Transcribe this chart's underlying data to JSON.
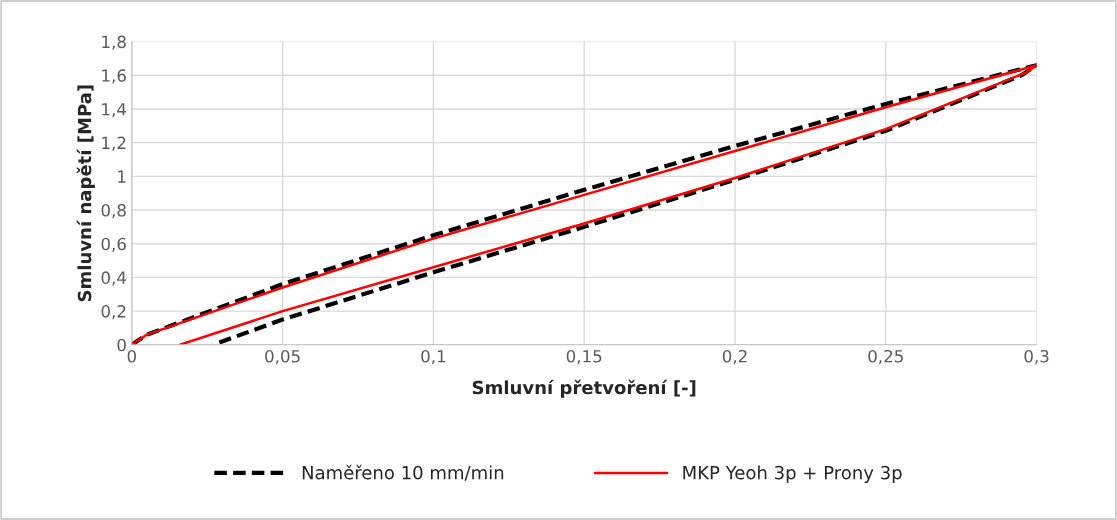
{
  "chart_data": {
    "type": "line",
    "xlabel": "Smluvní přetvoření [-]",
    "ylabel": "Smluvní napětí [MPa]",
    "xlim": [
      0,
      0.3
    ],
    "ylim": [
      0,
      1.8
    ],
    "xticks": [
      {
        "value": 0,
        "label": "0"
      },
      {
        "value": 0.05,
        "label": "0,05"
      },
      {
        "value": 0.1,
        "label": "0,1"
      },
      {
        "value": 0.15,
        "label": "0,15"
      },
      {
        "value": 0.2,
        "label": "0,2"
      },
      {
        "value": 0.25,
        "label": "0,25"
      },
      {
        "value": 0.3,
        "label": "0,3"
      }
    ],
    "yticks": [
      {
        "value": 0,
        "label": "0"
      },
      {
        "value": 0.2,
        "label": "0,2"
      },
      {
        "value": 0.4,
        "label": "0,4"
      },
      {
        "value": 0.6,
        "label": "0,6"
      },
      {
        "value": 0.8,
        "label": "0,8"
      },
      {
        "value": 1,
        "label": "1"
      },
      {
        "value": 1.2,
        "label": "1,2"
      },
      {
        "value": 1.4,
        "label": "1,4"
      },
      {
        "value": 1.6,
        "label": "1,6"
      },
      {
        "value": 1.8,
        "label": "1,8"
      }
    ],
    "grid": true,
    "legend": "bottom",
    "series": [
      {
        "name": "Naměřeno 10 mm/min",
        "color": "#000000",
        "line_style": "dashed",
        "x": [
          0,
          0.005,
          0.05,
          0.1,
          0.15,
          0.2,
          0.25,
          0.3,
          0.295,
          0.25,
          0.2,
          0.15,
          0.1,
          0.05,
          0.027
        ],
        "values": [
          0,
          0.06,
          0.36,
          0.65,
          0.92,
          1.18,
          1.43,
          1.66,
          1.6,
          1.27,
          0.98,
          0.7,
          0.43,
          0.15,
          0
        ]
      },
      {
        "name": "MKP Yeoh 3p + Prony 3p",
        "color": "#ff0000",
        "line_style": "solid",
        "x": [
          0,
          0.005,
          0.05,
          0.1,
          0.15,
          0.2,
          0.25,
          0.3,
          0.297,
          0.25,
          0.2,
          0.15,
          0.1,
          0.05,
          0.016
        ],
        "values": [
          0,
          0.06,
          0.34,
          0.63,
          0.89,
          1.15,
          1.41,
          1.66,
          1.62,
          1.28,
          0.99,
          0.72,
          0.46,
          0.2,
          0
        ]
      }
    ]
  }
}
